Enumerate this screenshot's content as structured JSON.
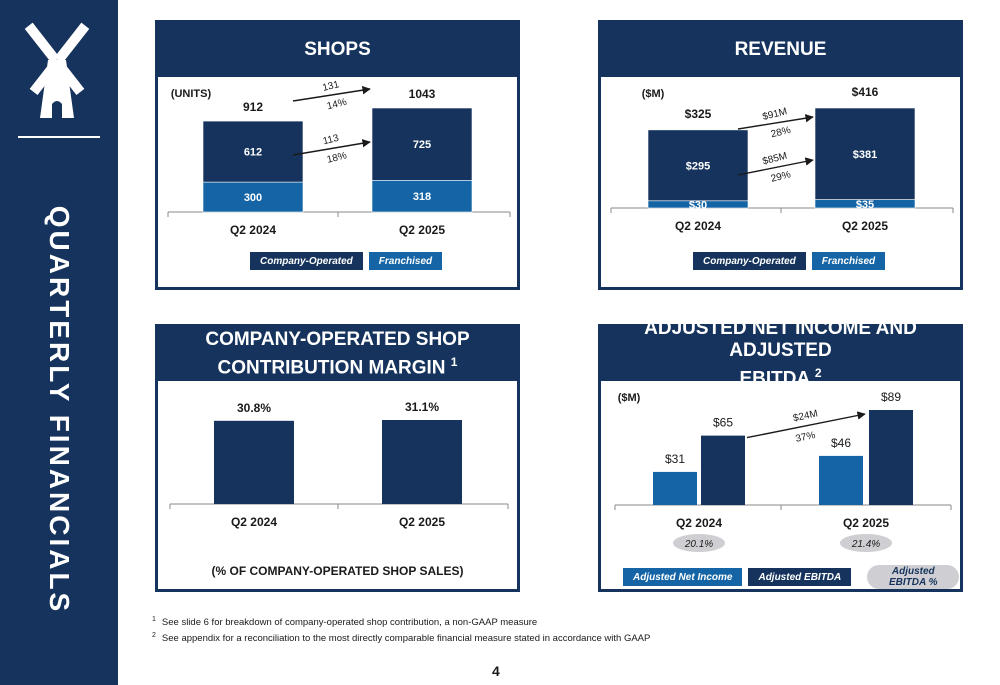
{
  "sidebar": {
    "title": "QUARTERLY FINANCIALS",
    "logo_icon": "windmill-icon"
  },
  "colors": {
    "navy": "#15335c",
    "blue": "#1565a6",
    "grey": "#cfcfd3"
  },
  "chart_data": [
    {
      "type": "bar",
      "title": "SHOPS",
      "unit_label": "(UNITS)",
      "categories": [
        "Q2 2024",
        "Q2 2025"
      ],
      "stacked": true,
      "series": [
        {
          "name": "Franchised",
          "values": [
            300,
            318
          ],
          "color": "#1565a6"
        },
        {
          "name": "Company-Operated",
          "values": [
            612,
            725
          ],
          "color": "#15335c"
        }
      ],
      "totals": [
        912,
        1043
      ],
      "annotations": [
        {
          "line1": "131",
          "line2": "14%",
          "target": "total"
        },
        {
          "line1": "113",
          "line2": "18%",
          "target": "segment"
        }
      ],
      "legend": [
        "Company-Operated",
        "Franchised"
      ],
      "legend_placement": "bottom"
    },
    {
      "type": "bar",
      "title": "REVENUE",
      "unit_label": "($M)",
      "categories": [
        "Q2 2024",
        "Q2 2025"
      ],
      "stacked": true,
      "series": [
        {
          "name": "Franchised",
          "values": [
            30,
            35
          ],
          "color": "#1565a6",
          "labels": [
            "$30",
            "$35"
          ]
        },
        {
          "name": "Company-Operated",
          "values": [
            295,
            381
          ],
          "color": "#15335c",
          "labels": [
            "$295",
            "$381"
          ]
        }
      ],
      "totals": [
        325,
        416
      ],
      "total_labels": [
        "$325",
        "$416"
      ],
      "annotations": [
        {
          "line1": "$91M",
          "line2": "28%",
          "target": "total"
        },
        {
          "line1": "$85M",
          "line2": "29%",
          "target": "segment"
        }
      ],
      "legend": [
        "Company-Operated",
        "Franchised"
      ],
      "legend_placement": "bottom"
    },
    {
      "type": "bar",
      "title_line1": "COMPANY-OPERATED SHOP",
      "title_line2": "CONTRIBUTION MARGIN",
      "title_footnote": "1",
      "categories": [
        "Q2 2024",
        "Q2 2025"
      ],
      "values": [
        30.8,
        31.1
      ],
      "labels": [
        "30.8%",
        "31.1%"
      ],
      "footer": "(% OF COMPANY-OPERATED SHOP SALES)"
    },
    {
      "type": "bar",
      "title_line1": "ADJUSTED NET INCOME AND ADJUSTED",
      "title_line2": "EBITDA",
      "title_footnote": "2",
      "unit_label": "($M)",
      "categories": [
        "Q2 2024",
        "Q2 2025"
      ],
      "series": [
        {
          "name": "Adjusted Net Income",
          "values": [
            31,
            46
          ],
          "labels": [
            "$31",
            "$46"
          ],
          "color": "#1565a6"
        },
        {
          "name": "Adjusted EBITDA",
          "values": [
            65,
            89
          ],
          "labels": [
            "$65",
            "$89"
          ],
          "color": "#15335c"
        }
      ],
      "margins": [
        "20.1%",
        "21.4%"
      ],
      "annotations": [
        {
          "line1": "$24M",
          "line2": "37%"
        }
      ],
      "legend": [
        "Adjusted Net Income",
        "Adjusted EBITDA",
        "Adjusted EBITDA %"
      ],
      "legend_placement": "bottom"
    }
  ],
  "footnotes": [
    {
      "mark": "1",
      "text": "See slide 6 for breakdown of company-operated shop contribution, a non-GAAP measure"
    },
    {
      "mark": "2",
      "text": "See appendix for a reconciliation to the most directly comparable financial measure stated in accordance with GAAP"
    }
  ],
  "page_number": "4"
}
